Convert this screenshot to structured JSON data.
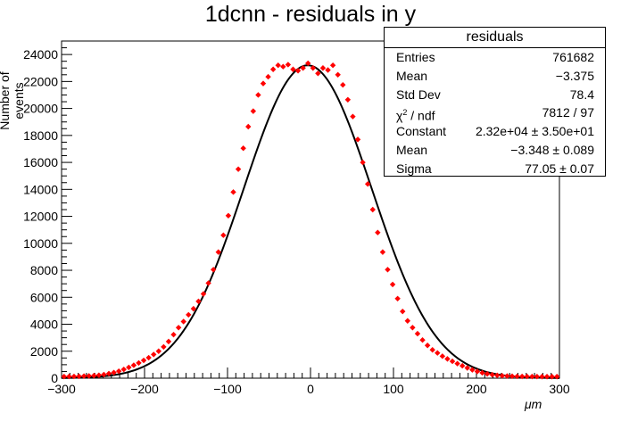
{
  "chart_data": {
    "type": "scatter",
    "title": "1dcnn - residuals in y",
    "xlabel": "μm",
    "ylabel": "Number of events",
    "xlim": [
      -300,
      300
    ],
    "ylim": [
      0,
      25000
    ],
    "xticks": [
      "−300",
      "−200",
      "−100",
      "0",
      "100",
      "200",
      "300"
    ],
    "yticks": [
      "0",
      "2000",
      "4000",
      "6000",
      "8000",
      "10000",
      "12000",
      "14000",
      "16000",
      "18000",
      "20000",
      "22000",
      "24000"
    ],
    "grid": false,
    "colors": {
      "data": "#ff0000",
      "fit": "#000000"
    },
    "series": [
      {
        "kind": "histogram-points",
        "x": [
          -297,
          -291,
          -285,
          -279,
          -273,
          -267,
          -261,
          -255,
          -249,
          -243,
          -237,
          -231,
          -225,
          -219,
          -213,
          -207,
          -201,
          -195,
          -189,
          -183,
          -177,
          -171,
          -165,
          -159,
          -153,
          -147,
          -141,
          -135,
          -129,
          -123,
          -117,
          -111,
          -105,
          -99,
          -93,
          -87,
          -81,
          -75,
          -69,
          -63,
          -57,
          -51,
          -45,
          -39,
          -33,
          -27,
          -21,
          -15,
          -9,
          -3,
          3,
          9,
          15,
          21,
          27,
          33,
          39,
          45,
          51,
          57,
          63,
          69,
          75,
          81,
          87,
          93,
          99,
          105,
          111,
          117,
          123,
          129,
          135,
          141,
          147,
          153,
          159,
          165,
          171,
          177,
          183,
          189,
          195,
          201,
          207,
          213,
          219,
          225,
          231,
          237,
          243,
          249,
          255,
          261,
          267,
          273,
          279,
          285,
          291,
          297
        ],
        "y": [
          120,
          125,
          130,
          140,
          155,
          170,
          190,
          220,
          270,
          340,
          420,
          520,
          650,
          800,
          960,
          1130,
          1320,
          1520,
          1760,
          2000,
          2320,
          2720,
          3230,
          3750,
          4200,
          4700,
          5150,
          5700,
          6250,
          7050,
          8050,
          9350,
          10600,
          12050,
          13800,
          15500,
          17050,
          18650,
          19800,
          21000,
          21850,
          22350,
          22900,
          23200,
          23100,
          23250,
          22900,
          22800,
          23000,
          23350,
          23000,
          22600,
          23000,
          22850,
          23200,
          22500,
          21750,
          20650,
          19400,
          17700,
          16000,
          14400,
          12500,
          10800,
          9350,
          8050,
          6950,
          5900,
          4950,
          4250,
          3750,
          3300,
          2830,
          2430,
          2100,
          1870,
          1630,
          1430,
          1250,
          1080,
          920,
          760,
          620,
          500,
          400,
          320,
          260,
          210,
          180,
          160,
          145,
          135,
          130,
          125,
          120,
          118,
          116,
          115,
          115,
          115
        ]
      },
      {
        "kind": "gaussian-fit",
        "constant": 23200,
        "mean": -3.348,
        "sigma": 77.05
      }
    ]
  },
  "stats_box": {
    "title": "residuals",
    "entries_label": "Entries",
    "entries_value": "761682",
    "mean_label": "Mean",
    "mean_value": "−3.375",
    "stddev_label": "Std Dev",
    "stddev_value": "78.4",
    "chi2_symbol": "χ",
    "chi2_sup": "2",
    "chi2_suffix": " / ndf",
    "chi2_value": "7812 / 97",
    "constant_label": "Constant",
    "constant_value": "2.32e+04  ± 3.50e+01",
    "fitmean_label": "Mean",
    "fitmean_value": "−3.348  ± 0.089",
    "sigma_label": "Sigma",
    "sigma_value": "77.05  ± 0.07"
  }
}
